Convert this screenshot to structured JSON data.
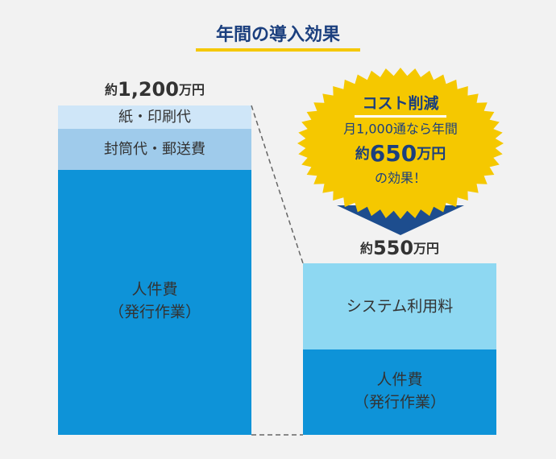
{
  "title": "年間の導入効果",
  "before": {
    "total": {
      "prefix": "約",
      "amount": "1,200",
      "unit": "万円"
    },
    "segments": [
      {
        "label": [
          "紙・印刷代"
        ]
      },
      {
        "label": [
          "封筒代・郵送費"
        ]
      },
      {
        "label": [
          "人件費",
          "（発行作業）"
        ]
      }
    ]
  },
  "after": {
    "total": {
      "prefix": "約",
      "amount": "550",
      "unit": "万円"
    },
    "segments": [
      {
        "label": [
          "システム利用料"
        ]
      },
      {
        "label": [
          "人件費",
          "（発行作業）"
        ]
      }
    ]
  },
  "callout": {
    "heading": "コスト削減",
    "line1": "月1,000通なら年間",
    "saving": {
      "prefix": "約",
      "amount": "650",
      "unit": "万円"
    },
    "line3": "の効果！"
  }
}
